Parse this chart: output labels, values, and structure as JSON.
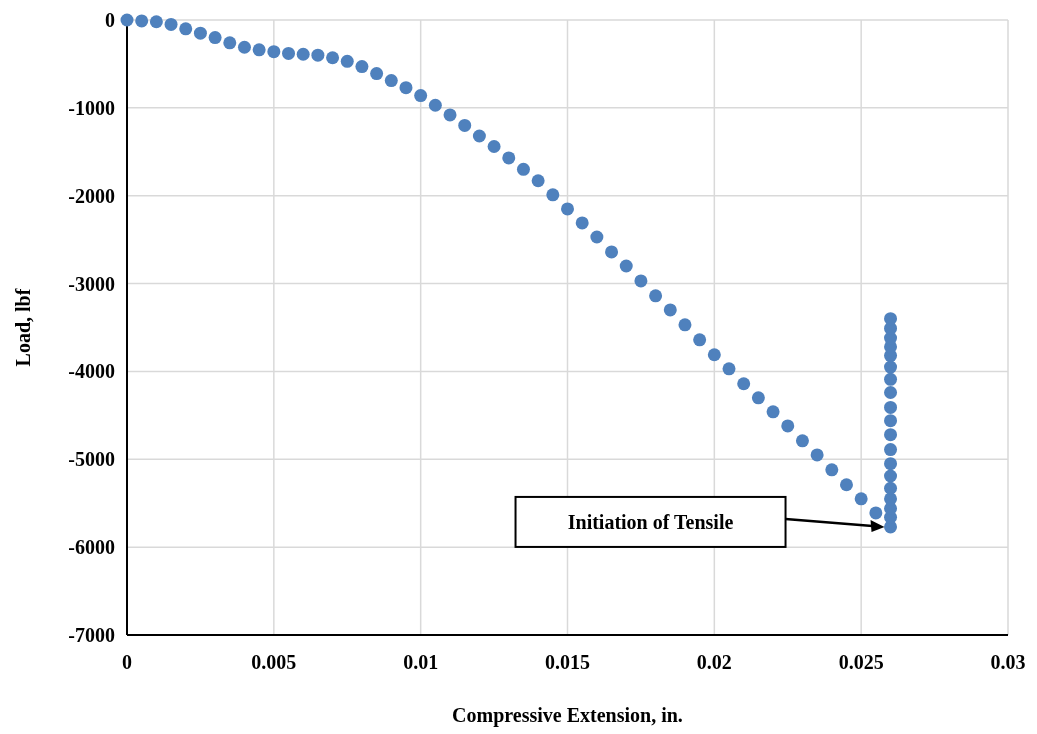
{
  "chart_data": {
    "type": "scatter",
    "xlabel": "Compressive Extension, in.",
    "ylabel": "Load, lbf",
    "xlim": [
      0,
      0.03
    ],
    "xticks": [
      0,
      0.005,
      0.01,
      0.015,
      0.02,
      0.025,
      0.03
    ],
    "ylim": [
      -7000,
      0
    ],
    "yticks": [
      -7000,
      -6000,
      -5000,
      -4000,
      -3000,
      -2000,
      -1000,
      0
    ],
    "grid": true,
    "marker": "circle",
    "annotations": [
      "Initiation of Tensile"
    ],
    "series": [
      {
        "color": "#4f81bd",
        "x": [
          0,
          0.0005,
          0.001,
          0.0015,
          0.002,
          0.0025,
          0.003,
          0.0035,
          0.004,
          0.0045,
          0.005,
          0.0055,
          0.006,
          0.0065,
          0.007,
          0.0075,
          0.008,
          0.0085,
          0.009,
          0.0095,
          0.01,
          0.0105,
          0.011,
          0.0115,
          0.012,
          0.0125,
          0.013,
          0.0135,
          0.014,
          0.0145,
          0.015,
          0.0155,
          0.016,
          0.0165,
          0.017,
          0.0175,
          0.018,
          0.0185,
          0.019,
          0.0195,
          0.02,
          0.0205,
          0.021,
          0.0215,
          0.022,
          0.0225,
          0.023,
          0.0235,
          0.024,
          0.0245,
          0.025,
          0.0255,
          0.026,
          0.026,
          0.026,
          0.026,
          0.026,
          0.026,
          0.026,
          0.026,
          0.026,
          0.026,
          0.026,
          0.026,
          0.026,
          0.026,
          0.026,
          0.026,
          0.026,
          0.026,
          0.026
        ],
        "values": [
          0,
          -10,
          -20,
          -50,
          -100,
          -150,
          -200,
          -260,
          -310,
          -340,
          -360,
          -380,
          -390,
          -400,
          -430,
          -470,
          -530,
          -610,
          -690,
          -770,
          -860,
          -970,
          -1080,
          -1200,
          -1320,
          -1440,
          -1570,
          -1700,
          -1830,
          -1990,
          -2150,
          -2310,
          -2470,
          -2640,
          -2800,
          -2970,
          -3140,
          -3300,
          -3470,
          -3640,
          -3810,
          -3970,
          -4140,
          -4300,
          -4460,
          -4620,
          -4790,
          -4950,
          -5120,
          -5290,
          -5450,
          -5610,
          -5770,
          -5660,
          -5560,
          -5450,
          -5330,
          -5190,
          -5050,
          -4890,
          -4720,
          -4560,
          -4410,
          -4240,
          -4090,
          -3950,
          -3820,
          -3720,
          -3620,
          -3510,
          -3400
        ]
      }
    ]
  }
}
